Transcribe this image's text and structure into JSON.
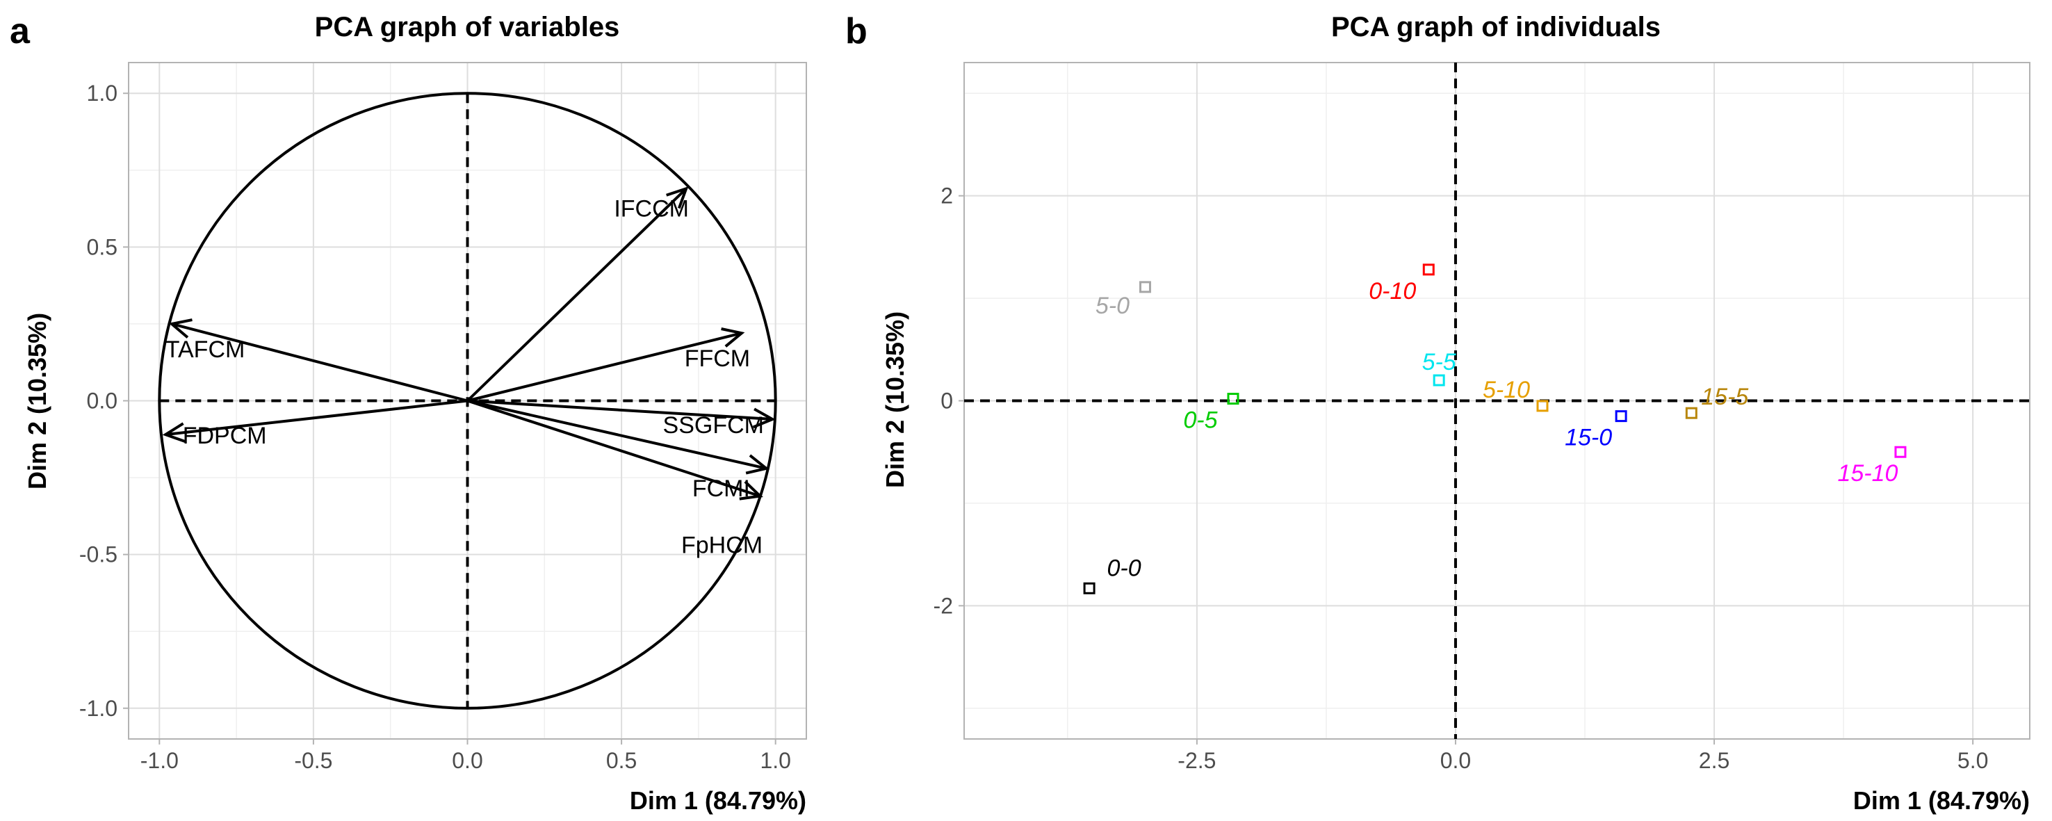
{
  "chart_data": [
    {
      "panel_label": "a",
      "type": "scatter",
      "subtype": "pca-variables-correlation-circle",
      "title": "PCA graph of variables",
      "xlabel": "Dim 1 (84.79%)",
      "ylabel": "Dim 2 (10.35%)",
      "xlim": [
        -1.1,
        1.1
      ],
      "ylim": [
        -1.1,
        1.1
      ],
      "xticks": [
        -1.0,
        -0.5,
        0.0,
        0.5,
        1.0
      ],
      "xtick_labels": [
        "-1.0",
        "-0.5",
        "0.0",
        "0.5",
        "1.0"
      ],
      "yticks": [
        1.0,
        0.5,
        0.0,
        -0.5,
        -1.0
      ],
      "ytick_labels": [
        "1.0",
        "0.5",
        "0.0",
        "-0.5",
        "-1.0"
      ],
      "grid": true,
      "unit_circle": true,
      "arrows": [
        {
          "name": "IFCCM",
          "x": 0.71,
          "y": 0.69
        },
        {
          "name": "FFCM",
          "x": 0.89,
          "y": 0.22
        },
        {
          "name": "SSGFCM",
          "x": 0.99,
          "y": -0.06
        },
        {
          "name": "FCMI",
          "x": 0.97,
          "y": -0.22
        },
        {
          "name": "FpHCM",
          "x": 0.95,
          "y": -0.31
        },
        {
          "name": "TAFCM",
          "x": -0.96,
          "y": 0.25
        },
        {
          "name": "FDPCM",
          "x": -0.98,
          "y": -0.11
        }
      ],
      "labels": [
        "IFCCM",
        "FFCM",
        "SSGFCM",
        "FCMI",
        "FpHCM",
        "TAFCM",
        "FDPCM"
      ]
    },
    {
      "panel_label": "b",
      "type": "scatter",
      "subtype": "pca-individuals",
      "title": "PCA graph of individuals",
      "xlabel": "Dim 1 (84.79%)",
      "ylabel": "Dim 2 (10.35%)",
      "xlim": [
        -4.75,
        5.55
      ],
      "ylim": [
        -3.3,
        3.3
      ],
      "xticks": [
        -2.5,
        0.0,
        2.5,
        5.0
      ],
      "xtick_labels": [
        "-2.5",
        "0.0",
        "2.5",
        "5.0"
      ],
      "yticks": [
        2,
        0,
        -2
      ],
      "ytick_labels": [
        "2",
        "0",
        "-2"
      ],
      "grid": true,
      "points": [
        {
          "name": "5-0",
          "x": -3.0,
          "y": 1.11,
          "color": "#a6a6a6"
        },
        {
          "name": "0-10",
          "x": -0.26,
          "y": 1.28,
          "color": "#ff0000"
        },
        {
          "name": "5-5",
          "x": -0.16,
          "y": 0.2,
          "color": "#00e5ee"
        },
        {
          "name": "5-10",
          "x": 0.84,
          "y": -0.05,
          "color": "#e69f00"
        },
        {
          "name": "0-5",
          "x": -2.15,
          "y": 0.02,
          "color": "#00cc00"
        },
        {
          "name": "15-0",
          "x": 1.6,
          "y": -0.15,
          "color": "#0000ff"
        },
        {
          "name": "15-5",
          "x": 2.28,
          "y": -0.12,
          "color": "#b8860b"
        },
        {
          "name": "15-10",
          "x": 4.3,
          "y": -0.5,
          "color": "#ff00ff"
        },
        {
          "name": "0-0",
          "x": -3.54,
          "y": -1.83,
          "color": "#000000"
        }
      ]
    }
  ]
}
